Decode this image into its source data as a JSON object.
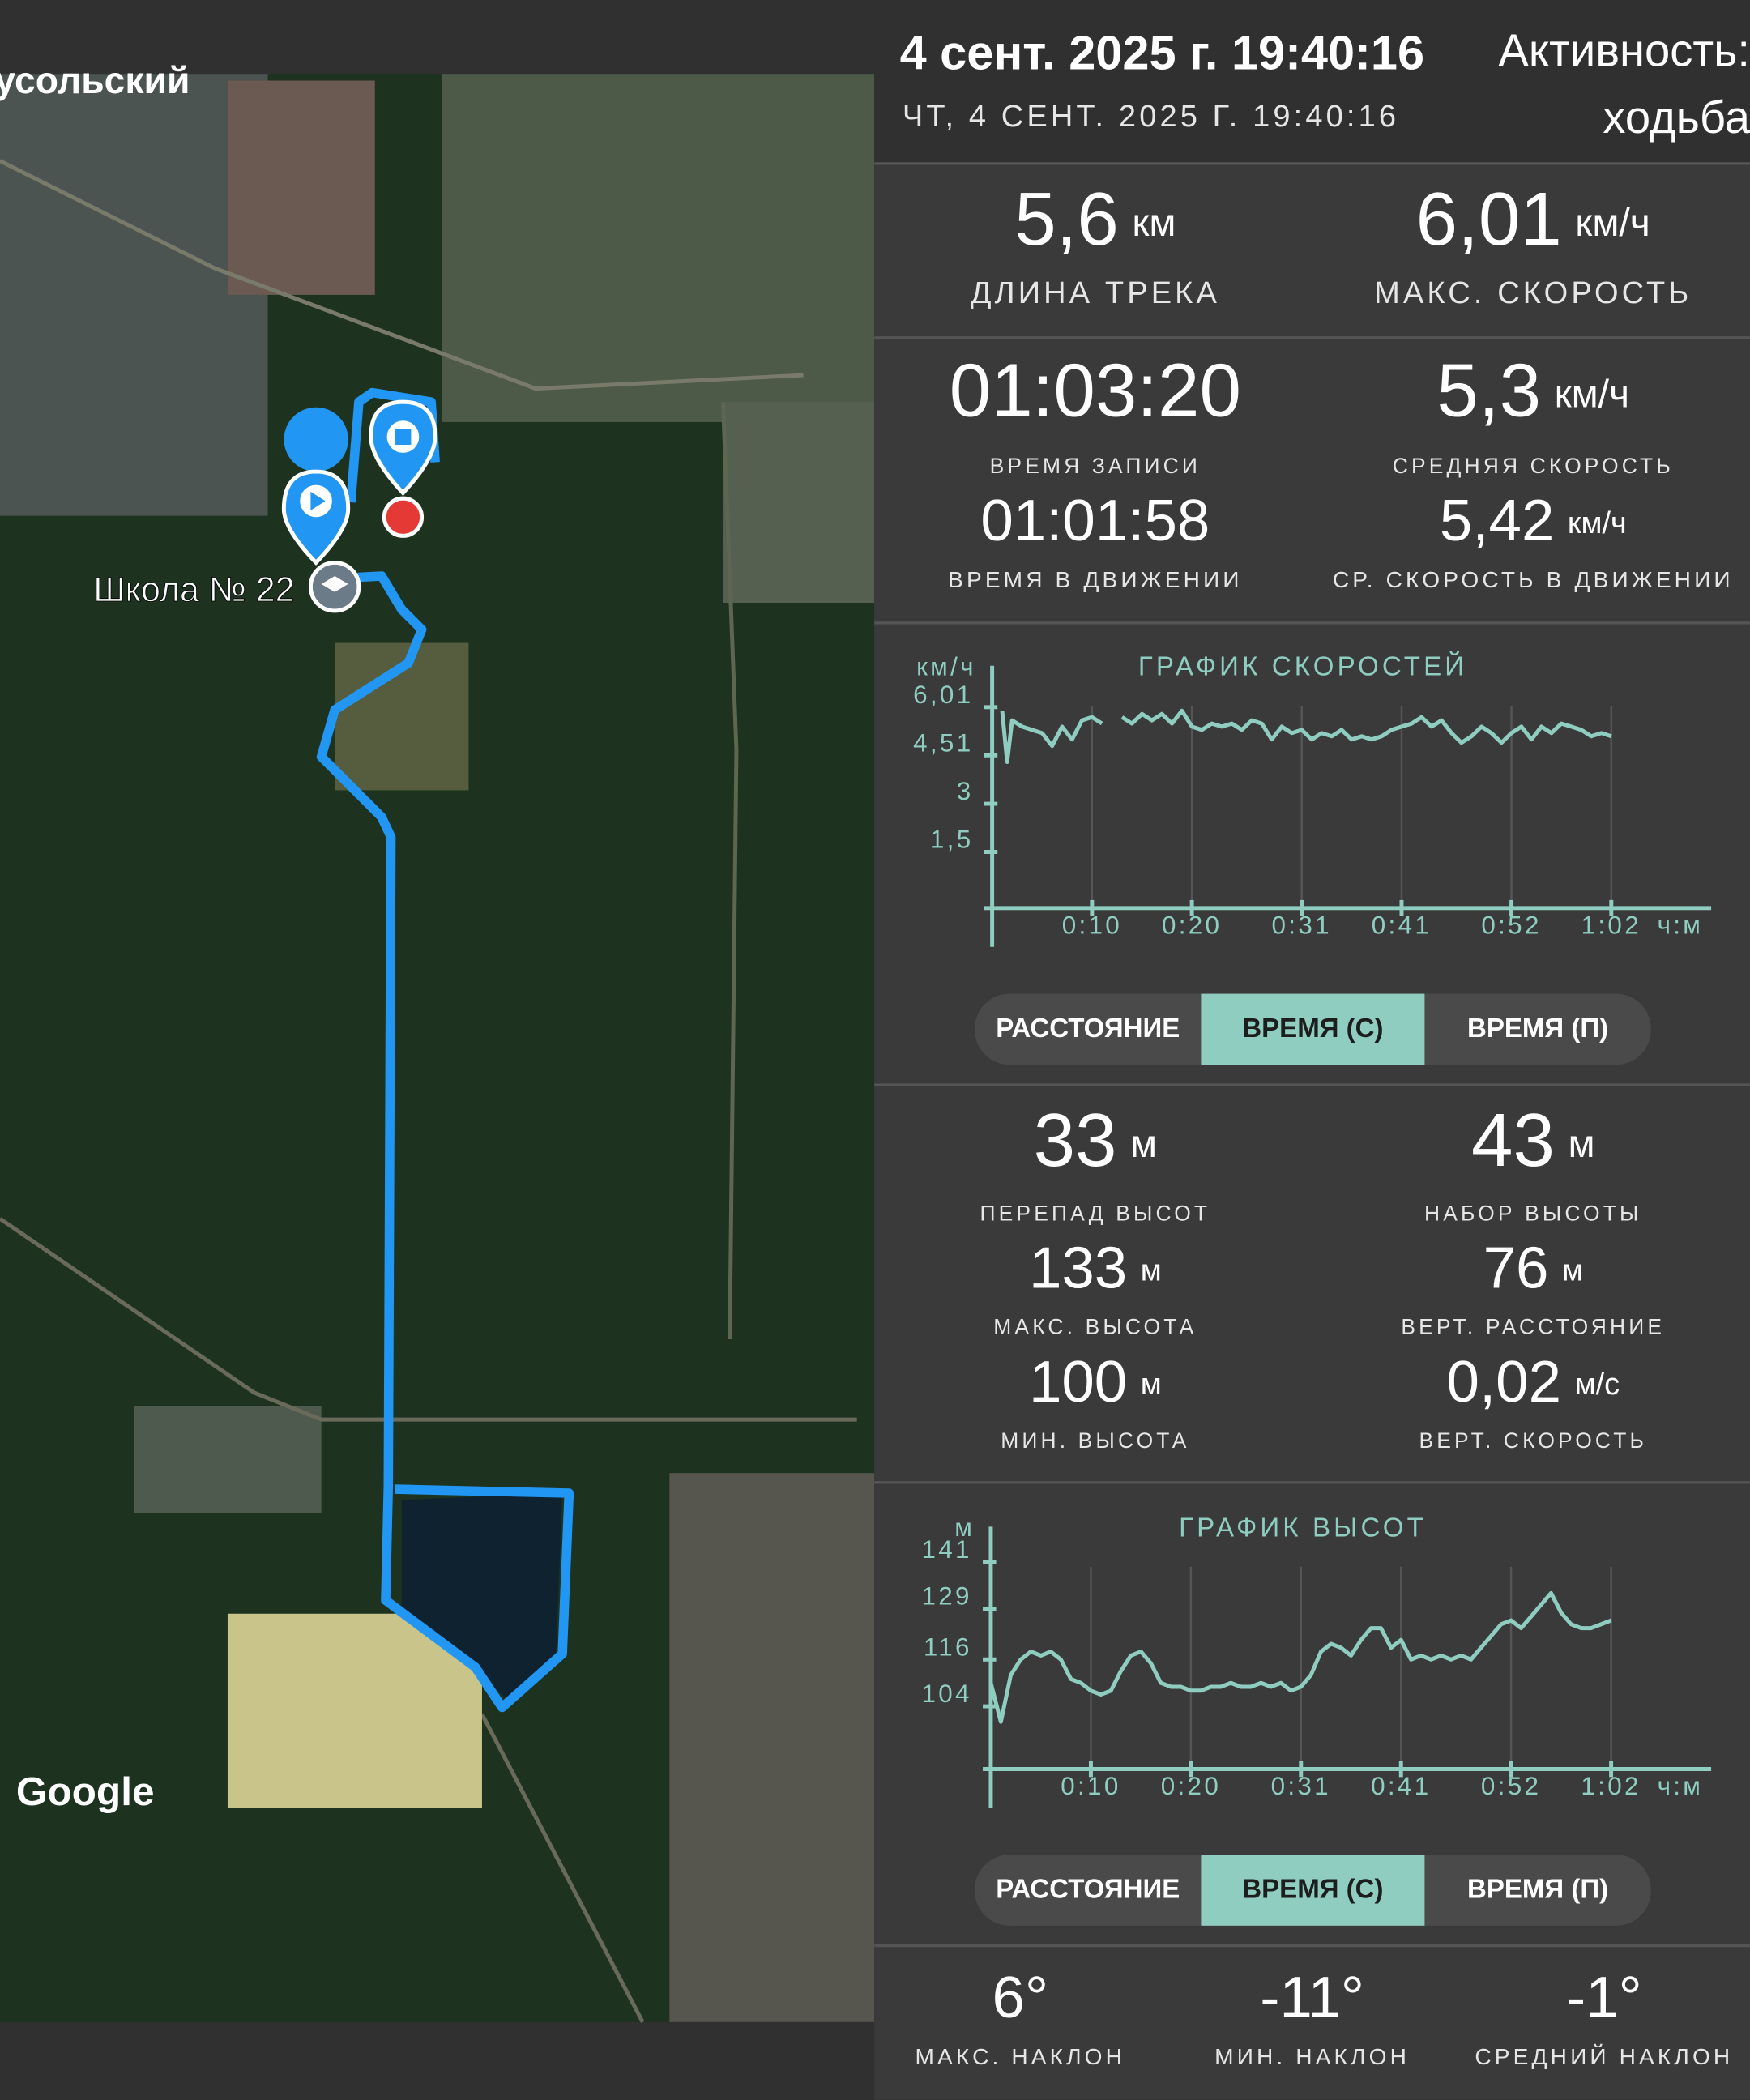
{
  "map": {
    "place_label": "усольский",
    "poi_label": "Школа № 22",
    "attribution": "Google"
  },
  "header": {
    "title": "4 сент. 2025 г. 19:40:16",
    "subtitle": "ЧТ, 4 СЕНТ. 2025 Г. 19:40:16",
    "activity": "Активность:",
    "activity_value": "ходьба"
  },
  "track_stats": [
    {
      "value": "5,6",
      "unit": "км",
      "label": "ДЛИНА ТРЕКА"
    },
    {
      "value": "6,01",
      "unit": "км/ч",
      "label": "МАКС. СКОРОСТЬ"
    },
    {
      "value": "01:03:20",
      "label": "ВРЕМЯ ЗАПИСИ"
    },
    {
      "value": "5,3",
      "unit": "км/ч",
      "label": "СРЕДНЯЯ СКОРОСТЬ"
    },
    {
      "value": "01:01:58",
      "label": "ВРЕМЯ В ДВИЖЕНИИ"
    },
    {
      "value": "5,42",
      "unit": "км/ч",
      "label": "СР. СКОРОСТЬ В ДВИЖЕНИИ"
    }
  ],
  "speed_chart": {
    "type": "line",
    "title": "ГРАФИК СКОРОСТЕЙ",
    "y_label": "км/ч",
    "x_label": "ч:м",
    "color": "#8ecdc0",
    "grid": "x",
    "x": [
      1,
      1.5,
      2,
      3,
      4,
      5,
      6,
      7,
      8,
      9,
      10,
      11,
      12,
      13,
      14,
      15,
      16,
      17,
      18,
      19,
      20,
      21,
      22,
      23,
      24,
      25,
      26,
      27,
      28,
      29,
      30,
      31,
      32,
      33,
      34,
      35,
      36,
      37,
      38,
      39,
      40,
      41,
      42,
      43,
      44,
      45,
      46,
      47,
      48,
      49,
      50,
      51,
      52,
      53,
      54,
      55,
      56,
      57,
      58,
      59,
      60,
      61,
      62
    ],
    "values": [
      5.9,
      4.3,
      5.6,
      5.4,
      5.3,
      5.2,
      4.8,
      5.4,
      5.0,
      5.6,
      5.7,
      5.5,
      null,
      5.7,
      5.5,
      5.8,
      5.6,
      5.8,
      5.5,
      5.9,
      5.4,
      5.3,
      5.5,
      5.4,
      5.5,
      5.3,
      5.6,
      5.5,
      5.0,
      5.4,
      5.2,
      5.3,
      5.0,
      5.2,
      5.1,
      5.3,
      5.0,
      5.1,
      5.0,
      5.1,
      5.3,
      5.4,
      5.5,
      5.7,
      5.4,
      5.6,
      5.2,
      4.9,
      5.1,
      5.4,
      5.2,
      4.9,
      5.2,
      5.4,
      5.0,
      5.4,
      5.2,
      5.5,
      5.4,
      5.3,
      5.1,
      5.2,
      5.1
    ],
    "xlim": [
      0,
      72
    ],
    "ylim": [
      0,
      7.3
    ],
    "xticks": [
      {
        "value": 10,
        "label": "0:10"
      },
      {
        "value": 20,
        "label": "0:20"
      },
      {
        "value": 31,
        "label": "0:31"
      },
      {
        "value": 41,
        "label": "0:41"
      },
      {
        "value": 52,
        "label": "0:52"
      },
      {
        "value": 62,
        "label": "1:02"
      }
    ],
    "yticks": [
      {
        "value": 6.01,
        "label": "6,01"
      },
      {
        "value": 4.51,
        "label": "4,51"
      },
      3,
      {
        "value": 1.5,
        "label": "1,5"
      }
    ],
    "tabs": [
      "РАССТОЯНИЕ",
      "ВРЕМЯ (С)",
      "ВРЕМЯ (П)"
    ],
    "active_tab": 1
  },
  "elevation_stats": [
    {
      "value": "33",
      "unit": "м",
      "label": "ПЕРЕПАД ВЫСОТ"
    },
    {
      "value": "43",
      "unit": "м",
      "label": "НАБОР ВЫСОТЫ"
    },
    {
      "value": "133",
      "unit": "м",
      "label": "МАКС. ВЫСОТА"
    },
    {
      "value": "76",
      "unit": "м",
      "label": "ВЕРТ. РАССТОЯНИЕ"
    },
    {
      "value": "100",
      "unit": "м",
      "label": "МИН. ВЫСОТА"
    },
    {
      "value": "0,02",
      "unit": "м/с",
      "label": "ВЕРТ. СКОРОСТЬ"
    }
  ],
  "elevation_chart": {
    "type": "line",
    "title": "ГРАФИК ВЫСОТ",
    "y_label": "м",
    "x_label": "ч:м",
    "color": "#8ecdc0",
    "grid": "x",
    "x": [
      0,
      1,
      2,
      3,
      4,
      5,
      6,
      7,
      8,
      9,
      10,
      11,
      12,
      13,
      14,
      15,
      16,
      17,
      18,
      19,
      20,
      21,
      22,
      23,
      24,
      25,
      26,
      27,
      28,
      29,
      30,
      31,
      32,
      33,
      34,
      35,
      36,
      37,
      38,
      39,
      40,
      41,
      42,
      43,
      44,
      45,
      46,
      47,
      48,
      49,
      50,
      51,
      52,
      53,
      54,
      55,
      56,
      57,
      58,
      59,
      60,
      61,
      62
    ],
    "values": [
      110,
      100,
      112,
      116,
      118,
      117,
      118,
      116,
      111,
      110,
      108,
      107,
      108,
      113,
      117,
      118,
      115,
      110,
      109,
      109,
      108,
      108,
      109,
      109,
      110,
      109,
      109,
      110,
      109,
      110,
      108,
      109,
      112,
      118,
      120,
      119,
      117,
      121,
      124,
      124,
      119,
      121,
      116,
      117,
      116,
      117,
      116,
      117,
      116,
      119,
      122,
      125,
      126,
      124,
      127,
      130,
      133,
      128,
      125,
      124,
      124,
      125,
      126
    ],
    "xlim": [
      0,
      72
    ],
    "ylim": [
      90,
      150
    ],
    "xticks": [
      {
        "value": 10,
        "label": "0:10"
      },
      {
        "value": 20,
        "label": "0:20"
      },
      {
        "value": 31,
        "label": "0:31"
      },
      {
        "value": 41,
        "label": "0:41"
      },
      {
        "value": 52,
        "label": "0:52"
      },
      {
        "value": 62,
        "label": "1:02"
      }
    ],
    "yticks": [
      141,
      129,
      116,
      104
    ],
    "tabs": [
      "РАССТОЯНИЕ",
      "ВРЕМЯ (С)",
      "ВРЕМЯ (П)"
    ],
    "active_tab": 1
  },
  "slope_stats": [
    {
      "value": "6°",
      "label": "МАКС. НАКЛОН"
    },
    {
      "value": "-11°",
      "label": "МИН. НАКЛОН"
    },
    {
      "value": "-1°",
      "label": "СРЕДНИЙ НАКЛОН"
    }
  ]
}
